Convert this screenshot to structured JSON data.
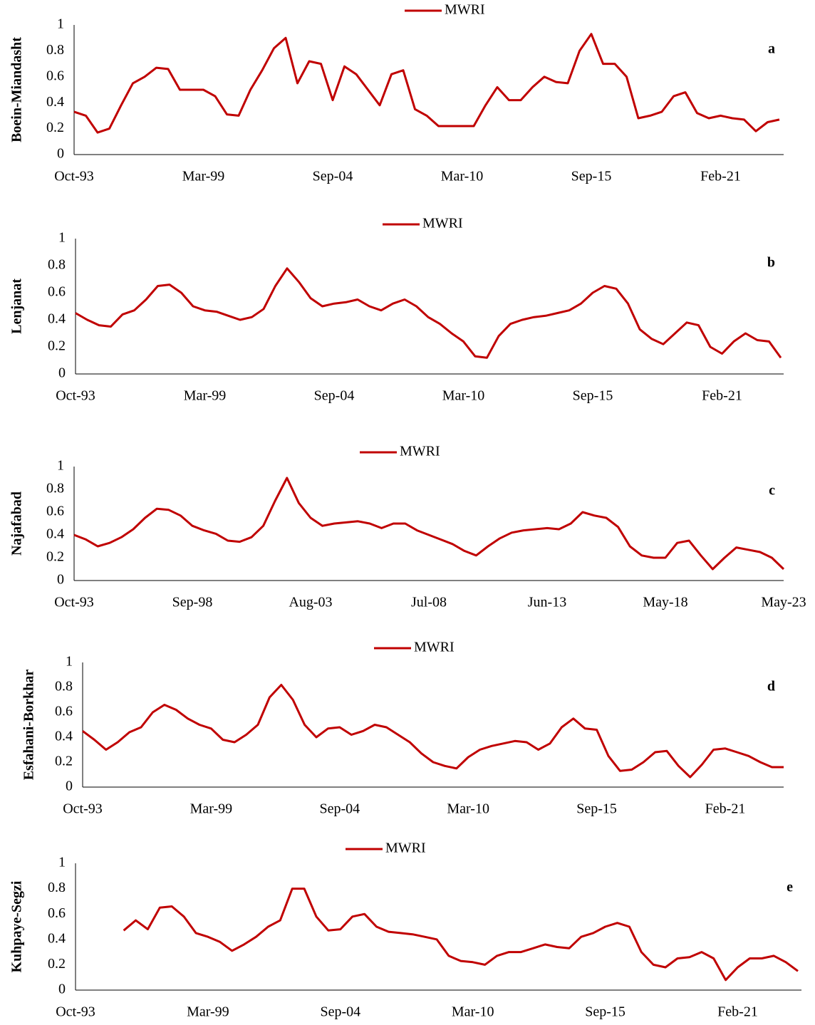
{
  "chart_data": [
    {
      "type": "line",
      "y_label": "Boein-Miandasht",
      "panel_label": "a",
      "categories": [
        "Oct-93",
        null,
        null,
        null,
        null,
        null,
        null,
        null,
        null,
        null,
        null,
        "Mar-99",
        null,
        null,
        null,
        null,
        null,
        null,
        null,
        null,
        null,
        null,
        "Sep-04",
        null,
        null,
        null,
        null,
        null,
        null,
        null,
        null,
        null,
        null,
        "Mar-10",
        null,
        null,
        null,
        null,
        null,
        null,
        null,
        null,
        null,
        null,
        "Sep-15",
        null,
        null,
        null,
        null,
        null,
        null,
        null,
        null,
        null,
        null,
        "Feb-21",
        null,
        null,
        null,
        null,
        null
      ],
      "series": [
        {
          "name": "MWRI",
          "color": "#c00000",
          "values": [
            0.33,
            0.3,
            0.17,
            0.2,
            0.38,
            0.55,
            0.6,
            0.67,
            0.66,
            0.5,
            0.5,
            0.5,
            0.45,
            0.31,
            0.3,
            0.5,
            0.65,
            0.82,
            0.9,
            0.55,
            0.72,
            0.7,
            0.42,
            0.68,
            0.62,
            0.5,
            0.38,
            0.62,
            0.65,
            0.35,
            0.3,
            0.22,
            0.22,
            0.22,
            0.22,
            0.38,
            0.52,
            0.42,
            0.42,
            0.52,
            0.6,
            0.56,
            0.55,
            0.8,
            0.93,
            0.7,
            0.7,
            0.6,
            0.28,
            0.3,
            0.33,
            0.45,
            0.48,
            0.32,
            0.28,
            0.3,
            0.28,
            0.27,
            0.18,
            0.25,
            0.27
          ]
        }
      ],
      "ylim": [
        0,
        1
      ],
      "yticks": [
        0,
        0.2,
        0.4,
        0.6,
        0.8,
        1
      ]
    },
    {
      "type": "line",
      "y_label": "Lenjanat",
      "panel_label": "b",
      "categories": [
        "Oct-93",
        null,
        null,
        null,
        null,
        null,
        null,
        null,
        null,
        null,
        null,
        "Mar-99",
        null,
        null,
        null,
        null,
        null,
        null,
        null,
        null,
        null,
        null,
        "Sep-04",
        null,
        null,
        null,
        null,
        null,
        null,
        null,
        null,
        null,
        null,
        "Mar-10",
        null,
        null,
        null,
        null,
        null,
        null,
        null,
        null,
        null,
        null,
        "Sep-15",
        null,
        null,
        null,
        null,
        null,
        null,
        null,
        null,
        null,
        null,
        "Feb-21",
        null,
        null,
        null,
        null,
        null
      ],
      "series": [
        {
          "name": "MWRI",
          "color": "#c00000",
          "values": [
            0.45,
            0.4,
            0.36,
            0.35,
            0.44,
            0.47,
            0.55,
            0.65,
            0.66,
            0.6,
            0.5,
            0.47,
            0.46,
            0.43,
            0.4,
            0.42,
            0.48,
            0.65,
            0.78,
            0.68,
            0.56,
            0.5,
            0.52,
            0.53,
            0.55,
            0.5,
            0.47,
            0.52,
            0.55,
            0.5,
            0.42,
            0.37,
            0.3,
            0.24,
            0.13,
            0.12,
            0.28,
            0.37,
            0.4,
            0.42,
            0.43,
            0.45,
            0.47,
            0.52,
            0.6,
            0.65,
            0.63,
            0.52,
            0.33,
            0.26,
            0.22,
            0.3,
            0.38,
            0.36,
            0.2,
            0.15,
            0.24,
            0.3,
            0.25,
            0.24,
            0.12
          ]
        }
      ],
      "ylim": [
        0,
        1
      ],
      "yticks": [
        0,
        0.2,
        0.4,
        0.6,
        0.8,
        1
      ]
    },
    {
      "type": "line",
      "y_label": "Najafabad",
      "panel_label": "c",
      "categories": [
        "Oct-93",
        null,
        null,
        null,
        null,
        null,
        null,
        null,
        null,
        null,
        "Sep-98",
        null,
        null,
        null,
        null,
        null,
        null,
        null,
        null,
        null,
        "Aug-03",
        null,
        null,
        null,
        null,
        null,
        null,
        null,
        null,
        null,
        "Jul-08",
        null,
        null,
        null,
        null,
        null,
        null,
        null,
        null,
        null,
        "Jun-13",
        null,
        null,
        null,
        null,
        null,
        null,
        null,
        null,
        null,
        "May-18",
        null,
        null,
        null,
        null,
        null,
        null,
        null,
        null,
        null,
        "May-23"
      ],
      "series": [
        {
          "name": "MWRI",
          "color": "#c00000",
          "values": [
            0.4,
            0.36,
            0.3,
            0.33,
            0.38,
            0.45,
            0.55,
            0.63,
            0.62,
            0.57,
            0.48,
            0.44,
            0.41,
            0.35,
            0.34,
            0.38,
            0.48,
            0.7,
            0.9,
            0.68,
            0.55,
            0.48,
            0.5,
            0.51,
            0.52,
            0.5,
            0.46,
            0.5,
            0.5,
            0.44,
            0.4,
            0.36,
            0.32,
            0.26,
            0.22,
            0.3,
            0.37,
            0.42,
            0.44,
            0.45,
            0.46,
            0.45,
            0.5,
            0.6,
            0.57,
            0.55,
            0.47,
            0.3,
            0.22,
            0.2,
            0.2,
            0.33,
            0.35,
            0.22,
            0.1,
            0.2,
            0.29,
            0.27,
            0.25,
            0.2,
            0.1
          ]
        }
      ],
      "ylim": [
        0,
        1
      ],
      "yticks": [
        0,
        0.2,
        0.4,
        0.6,
        0.8,
        1
      ]
    },
    {
      "type": "line",
      "y_label": "Esfahani-Borkhar",
      "panel_label": "d",
      "categories": [
        "Oct-93",
        null,
        null,
        null,
        null,
        null,
        null,
        null,
        null,
        null,
        null,
        "Mar-99",
        null,
        null,
        null,
        null,
        null,
        null,
        null,
        null,
        null,
        null,
        "Sep-04",
        null,
        null,
        null,
        null,
        null,
        null,
        null,
        null,
        null,
        null,
        "Mar-10",
        null,
        null,
        null,
        null,
        null,
        null,
        null,
        null,
        null,
        null,
        "Sep-15",
        null,
        null,
        null,
        null,
        null,
        null,
        null,
        null,
        null,
        null,
        "Feb-21",
        null,
        null,
        null,
        null,
        null
      ],
      "series": [
        {
          "name": "MWRI",
          "color": "#c00000",
          "values": [
            0.45,
            0.38,
            0.3,
            0.36,
            0.44,
            0.48,
            0.6,
            0.66,
            0.62,
            0.55,
            0.5,
            0.47,
            0.38,
            0.36,
            0.42,
            0.5,
            0.72,
            0.82,
            0.7,
            0.5,
            0.4,
            0.47,
            0.48,
            0.42,
            0.45,
            0.5,
            0.48,
            0.42,
            0.36,
            0.27,
            0.2,
            0.17,
            0.15,
            0.24,
            0.3,
            0.33,
            0.35,
            0.37,
            0.36,
            0.3,
            0.35,
            0.48,
            0.55,
            0.47,
            0.46,
            0.25,
            0.13,
            0.14,
            0.2,
            0.28,
            0.29,
            0.17,
            0.08,
            0.18,
            0.3,
            0.31,
            0.28,
            0.25,
            0.2,
            0.16,
            0.16
          ]
        }
      ],
      "ylim": [
        0,
        1
      ],
      "yticks": [
        0,
        0.2,
        0.4,
        0.6,
        0.8,
        1
      ]
    },
    {
      "type": "line",
      "y_label": "Kuhpaye-Segzi",
      "panel_label": "e",
      "categories": [
        "Oct-93",
        null,
        null,
        null,
        null,
        null,
        null,
        null,
        null,
        null,
        null,
        "Mar-99",
        null,
        null,
        null,
        null,
        null,
        null,
        null,
        null,
        null,
        null,
        "Sep-04",
        null,
        null,
        null,
        null,
        null,
        null,
        null,
        null,
        null,
        null,
        "Mar-10",
        null,
        null,
        null,
        null,
        null,
        null,
        null,
        null,
        null,
        null,
        "Sep-15",
        null,
        null,
        null,
        null,
        null,
        null,
        null,
        null,
        null,
        null,
        "Feb-21",
        null,
        null,
        null,
        null,
        null
      ],
      "series": [
        {
          "name": "MWRI",
          "color": "#c00000",
          "values": [
            null,
            null,
            null,
            null,
            0.47,
            0.55,
            0.48,
            0.65,
            0.66,
            0.58,
            0.45,
            0.42,
            0.38,
            0.31,
            0.36,
            0.42,
            0.5,
            0.55,
            0.8,
            0.8,
            0.58,
            0.47,
            0.48,
            0.58,
            0.6,
            0.5,
            0.46,
            0.45,
            0.44,
            0.42,
            0.4,
            0.27,
            0.23,
            0.22,
            0.2,
            0.27,
            0.3,
            0.3,
            0.33,
            0.36,
            0.34,
            0.33,
            0.42,
            0.45,
            0.5,
            0.53,
            0.5,
            0.3,
            0.2,
            0.18,
            0.25,
            0.26,
            0.3,
            0.25,
            0.08,
            0.18,
            0.25,
            0.25,
            0.27,
            0.22,
            0.15
          ]
        }
      ],
      "ylim": [
        0,
        1
      ],
      "yticks": [
        0,
        0.2,
        0.4,
        0.6,
        0.8,
        1
      ]
    }
  ]
}
